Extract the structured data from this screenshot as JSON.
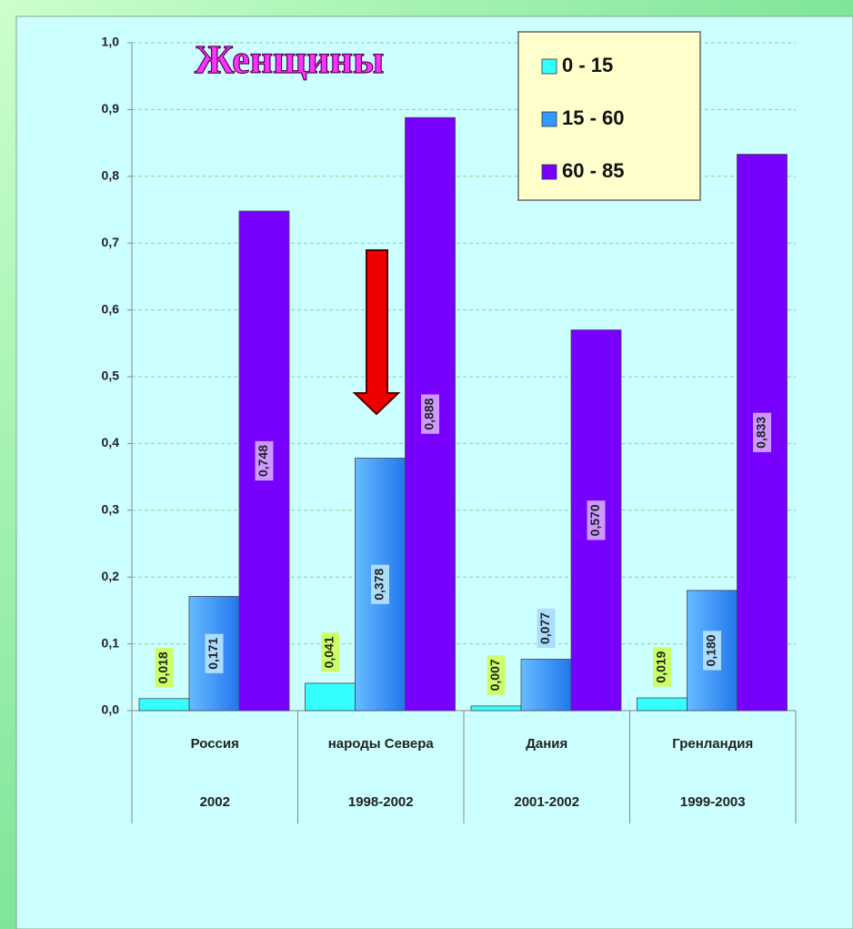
{
  "chart_data": {
    "type": "bar",
    "title": "Женщины",
    "categories": [
      "Россия",
      "народы Севера",
      "Дания",
      "Гренландия"
    ],
    "category_years": [
      "2002",
      "1998-2002",
      "2001-2002",
      "1999-2003"
    ],
    "series": [
      {
        "name": "0 - 15",
        "color": "#33ffff",
        "values": [
          0.018,
          0.041,
          0.007,
          0.019
        ],
        "value_labels": [
          "0,018",
          "0,041",
          "0,007",
          "0,019"
        ],
        "label_color": "#ccff66"
      },
      {
        "name": "15 - 60",
        "color": "#3399ff",
        "values": [
          0.171,
          0.378,
          0.077,
          0.18
        ],
        "value_labels": [
          "0,171",
          "0,378",
          "0,077",
          "0,180"
        ],
        "label_color": "#aaddff"
      },
      {
        "name": "60 - 85",
        "color": "#7700ff",
        "values": [
          0.748,
          0.888,
          0.57,
          0.833
        ],
        "value_labels": [
          "0,748",
          "0,888",
          "0,570",
          "0,833"
        ],
        "label_color": "#cc99ff"
      }
    ],
    "ylim": [
      0,
      1
    ],
    "yticks": [
      {
        "value": 0,
        "label": "0,0"
      },
      {
        "value": 0.1,
        "label": "0,1"
      },
      {
        "value": 0.2,
        "label": "0,2"
      },
      {
        "value": 0.3,
        "label": "0,3"
      },
      {
        "value": 0.4,
        "label": "0,4"
      },
      {
        "value": 0.5,
        "label": "0,5"
      },
      {
        "value": 0.6,
        "label": "0,6"
      },
      {
        "value": 0.7,
        "label": "0,7"
      },
      {
        "value": 0.8,
        "label": "0,8"
      },
      {
        "value": 0.9,
        "label": "0,9"
      },
      {
        "value": 1,
        "label": "1,0"
      }
    ],
    "grid": true
  }
}
